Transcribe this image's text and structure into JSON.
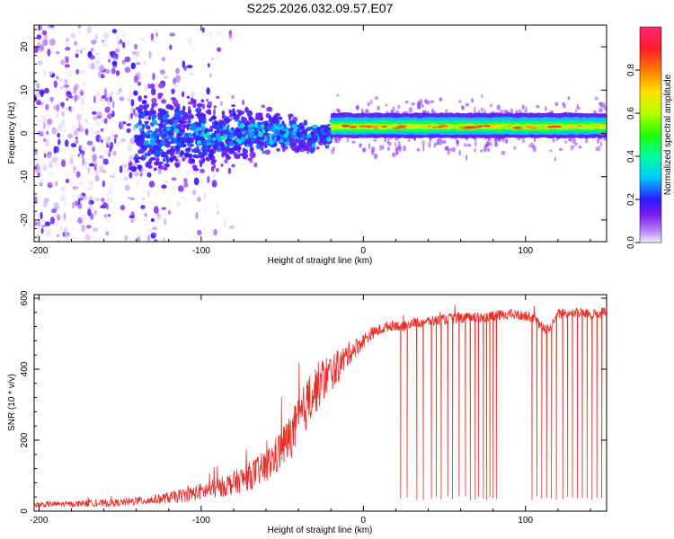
{
  "figure_title": "S225.2026.032.09.57.E07",
  "chart_data": [
    {
      "type": "heatmap",
      "name": "spectrogram",
      "title": "S225.2026.032.09.57.E07",
      "xlabel": "Height of straight line (km)",
      "ylabel": "Frequency (Hz)",
      "xlim": [
        -203,
        150
      ],
      "ylim": [
        -25,
        25
      ],
      "x_ticks": [
        -200,
        -100,
        0,
        100
      ],
      "x_tick_labels": [
        "-200",
        "-100",
        "0",
        "100"
      ],
      "y_ticks": [
        -20,
        -10,
        0,
        10,
        20
      ],
      "y_tick_labels": [
        "-20",
        "-10",
        "0",
        "10",
        "20"
      ],
      "colorbar": {
        "label": "Normalized spectral amplitude",
        "range": [
          0,
          1
        ],
        "ticks": [
          0.0,
          0.2,
          0.4,
          0.6,
          0.8
        ],
        "tick_labels": [
          "0.0",
          "0.2",
          "0.4",
          "0.6",
          "0.8"
        ]
      },
      "features": {
        "noise_region_km": [
          -203,
          -120
        ],
        "scatter_band_km": [
          -140,
          -20
        ],
        "carrier_line_km": [
          -20,
          150
        ],
        "carrier_frequency_hz": 1.5,
        "carrier_amplitude": 0.85
      }
    },
    {
      "type": "line",
      "name": "snr",
      "xlabel": "Height of straight line (km)",
      "ylabel": "SNR (10 * v/v)",
      "xlim": [
        -203,
        150
      ],
      "ylim": [
        0,
        610
      ],
      "x_ticks": [
        -200,
        -100,
        0,
        100
      ],
      "x_tick_labels": [
        "-200",
        "-100",
        "0",
        "100"
      ],
      "y_ticks": [
        0,
        200,
        400,
        600
      ],
      "y_tick_labels": [
        "0",
        "200",
        "400",
        "600"
      ],
      "series": [
        {
          "name": "SNR",
          "color": "#e8302a",
          "x": [
            -203,
            -190,
            -180,
            -170,
            -160,
            -150,
            -140,
            -130,
            -120,
            -110,
            -100,
            -90,
            -80,
            -70,
            -60,
            -55,
            -50,
            -45,
            -40,
            -35,
            -30,
            -25,
            -20,
            -15,
            -10,
            -5,
            0,
            5,
            10,
            15,
            20,
            25,
            30,
            40,
            50,
            60,
            70,
            80,
            90,
            100,
            105,
            110,
            115,
            120,
            130,
            140,
            150
          ],
          "y": [
            18,
            20,
            20,
            22,
            22,
            24,
            28,
            32,
            38,
            45,
            55,
            65,
            80,
            100,
            125,
            150,
            180,
            210,
            250,
            300,
            340,
            370,
            390,
            410,
            440,
            460,
            480,
            500,
            510,
            520,
            525,
            520,
            530,
            535,
            540,
            545,
            545,
            550,
            555,
            550,
            545,
            520,
            510,
            555,
            560,
            555,
            560
          ],
          "noise_amplitude": [
            8,
            8,
            8,
            9,
            10,
            10,
            12,
            14,
            16,
            20,
            24,
            28,
            34,
            40,
            48,
            55,
            60,
            65,
            70,
            72,
            70,
            65,
            55,
            45,
            35,
            28,
            22,
            18,
            16,
            15,
            15,
            15,
            15,
            15,
            15,
            15,
            15,
            15,
            15,
            15,
            15,
            15,
            15,
            15,
            15,
            15,
            15
          ]
        }
      ],
      "dropouts_km": [
        23,
        27,
        33,
        37,
        42,
        45,
        48,
        52,
        55,
        59,
        63,
        66,
        69,
        71,
        74,
        76,
        78,
        80,
        82,
        104,
        107,
        110,
        113,
        116,
        119,
        123,
        126,
        129,
        132,
        135,
        138,
        141,
        144,
        147
      ],
      "dropout_level": 30
    }
  ]
}
